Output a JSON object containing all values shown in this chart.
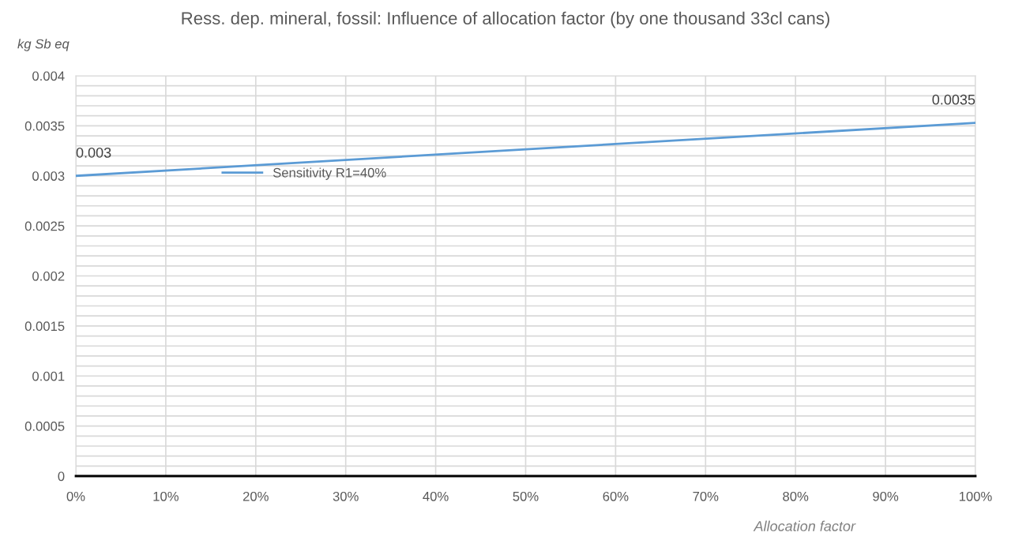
{
  "chart_data": {
    "type": "line",
    "title": "Ress. dep. mineral, fossil: Influence of allocation factor (by one thousand 33cl cans)",
    "xlabel": "Allocation factor",
    "ylabel": "kg Sb eq",
    "x": [
      0,
      100
    ],
    "series": [
      {
        "name": "Sensitivity R1=40%",
        "color": "#5b9bd5",
        "values": [
          0.003,
          0.00353
        ],
        "value_labels": [
          "0.003",
          "0.0035"
        ]
      }
    ],
    "xlim": [
      0,
      100
    ],
    "xticks": [
      {
        "value": 0,
        "label": "0%"
      },
      {
        "value": 10,
        "label": "10%"
      },
      {
        "value": 20,
        "label": "20%"
      },
      {
        "value": 30,
        "label": "30%"
      },
      {
        "value": 40,
        "label": "40%"
      },
      {
        "value": 50,
        "label": "50%"
      },
      {
        "value": 60,
        "label": "60%"
      },
      {
        "value": 70,
        "label": "70%"
      },
      {
        "value": 80,
        "label": "80%"
      },
      {
        "value": 90,
        "label": "90%"
      },
      {
        "value": 100,
        "label": "100%"
      }
    ],
    "ylim": [
      0,
      0.004
    ],
    "yticks": [
      0,
      0.0005,
      0.001,
      0.0015,
      0.002,
      0.0025,
      0.003,
      0.0035,
      0.004
    ],
    "grid": true,
    "legend": "top left",
    "marker": "none",
    "line_style": "solid"
  }
}
